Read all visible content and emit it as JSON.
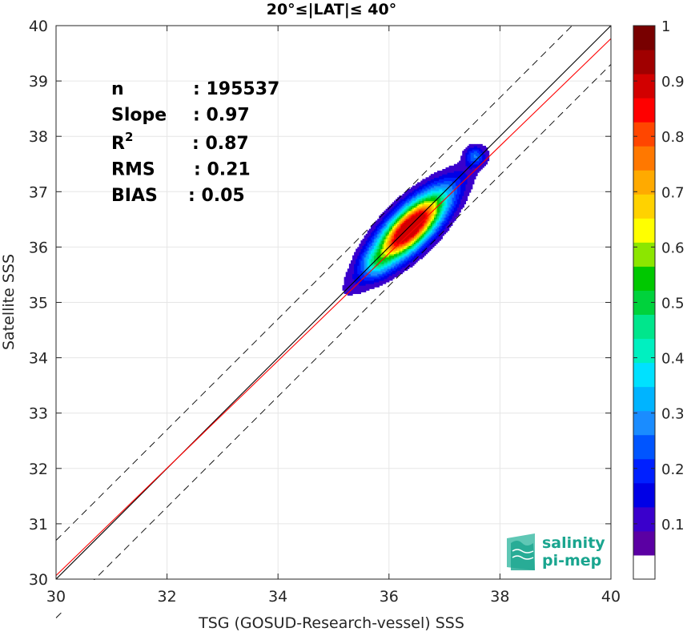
{
  "chart_data": {
    "type": "heatmap",
    "title": "20°≤|LAT|≤ 40°",
    "xlabel": "TSG (GOSUD-Research-vessel) SSS",
    "ylabel": "Satellite SSS",
    "xlim": [
      30,
      40
    ],
    "ylim": [
      30,
      40
    ],
    "x_ticks": [
      "30",
      "32",
      "34",
      "36",
      "38",
      "40"
    ],
    "y_ticks": [
      "30",
      "31",
      "32",
      "33",
      "34",
      "35",
      "36",
      "37",
      "38",
      "39",
      "40"
    ],
    "grid": true,
    "stats": [
      {
        "label": "n",
        "value": ": 195537"
      },
      {
        "label": "Slope",
        "value": ": 0.97"
      },
      {
        "label": "R²",
        "value": ": 0.87"
      },
      {
        "label": "RMS",
        "value": ": 0.21"
      },
      {
        "label": "BIAS",
        "value": ": 0.05"
      }
    ],
    "reference_lines": [
      {
        "name": "1:1",
        "color": "#000000",
        "style": "solid",
        "offset": 0
      },
      {
        "name": "+1",
        "color": "#000000",
        "style": "dashed",
        "offset": 0.7
      },
      {
        "name": "-1",
        "color": "#000000",
        "style": "dashed",
        "offset": -0.7
      },
      {
        "name": "fit",
        "color": "#ff0000",
        "style": "solid",
        "slope": 0.97,
        "intercept": 0.965
      }
    ],
    "density": {
      "center": [
        36.32,
        36.33
      ],
      "main_blob": {
        "cx": 36.38,
        "cy": 36.35,
        "sigma_major": 0.55,
        "sigma_minor": 0.22,
        "angle_deg": 45
      },
      "secondary_blobs": [
        {
          "cx": 37.55,
          "cy": 37.65,
          "weight": 0.22,
          "sigma": 0.12
        },
        {
          "cx": 35.75,
          "cy": 35.7,
          "weight": 0.14,
          "sigma": 0.15
        }
      ],
      "levels": [
        0.05,
        0.1,
        0.15,
        0.2,
        0.25,
        0.3,
        0.35,
        0.4,
        0.45,
        0.5,
        0.55,
        0.6,
        0.65,
        0.7,
        0.75,
        0.8,
        0.85,
        0.9,
        0.95
      ]
    },
    "colorbar": {
      "ticks": [
        "0.1",
        "0.2",
        "0.3",
        "0.4",
        "0.5",
        "0.6",
        "0.7",
        "0.8",
        "0.9",
        "1"
      ],
      "colors": [
        "#ffffff",
        "#5b00a3",
        "#3a00cc",
        "#0000e6",
        "#0020ff",
        "#0055ff",
        "#1a8cff",
        "#00b4ff",
        "#00e1ff",
        "#00f0c0",
        "#00e68c",
        "#00d23c",
        "#00c800",
        "#8ce600",
        "#ffff00",
        "#ffd200",
        "#ffaa00",
        "#ff7800",
        "#ff4600",
        "#ff0000",
        "#d20000",
        "#a00000",
        "#780000"
      ]
    }
  },
  "logo": {
    "line1": "salinity",
    "line2": "pi-mep"
  }
}
